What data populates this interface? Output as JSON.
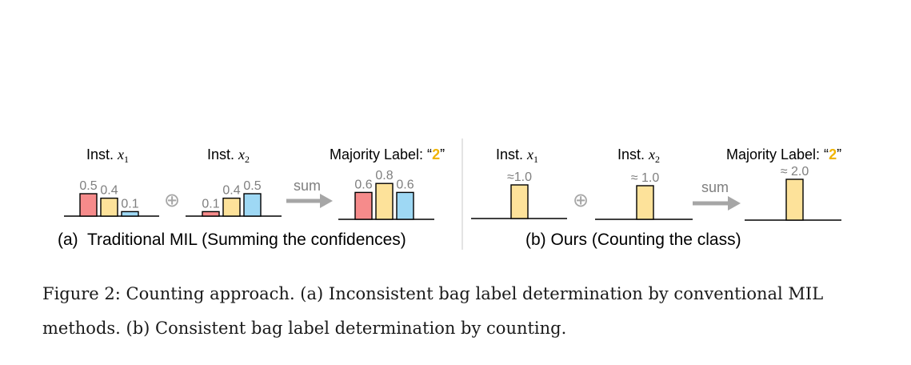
{
  "figure": {
    "panel_a": {
      "inst1": {
        "prefix": "Inst.",
        "var": "x",
        "sub": "1"
      },
      "inst2": {
        "prefix": "Inst.",
        "var": "x",
        "sub": "2"
      },
      "result": {
        "label": "Majority Label: “",
        "class": "2",
        "close": "”"
      },
      "operator": "⊕",
      "arrow_label": "sum",
      "caption": "(a)  Traditional MIL (Summing the confidences)"
    },
    "panel_b": {
      "inst1": {
        "prefix": "Inst.",
        "var": "x",
        "sub": "1"
      },
      "inst2": {
        "prefix": "Inst.",
        "var": "x",
        "sub": "2"
      },
      "result": {
        "label": "Majority Label: “",
        "class": "2",
        "close": "”"
      },
      "operator": "⊕",
      "arrow_label": "sum",
      "caption": "(b) Ours (Counting the class)"
    },
    "caption_text": "Figure 2: Counting approach. (a) Inconsistent bag label determination by conventional MIL methods. (b) Consistent bag label determination by counting."
  },
  "colors": {
    "class1": "#f68b8b",
    "class2": "#fde29a",
    "class3": "#9ed8f4",
    "accent": "#f0b400",
    "arrow": "#a6a6a6",
    "value_text": "#7f7f7f"
  },
  "chart_data": [
    {
      "type": "bar",
      "panel": "a",
      "group": "inst1",
      "values": [
        0.5,
        0.4,
        0.1
      ],
      "labels": [
        "0.5",
        "0.4",
        "0.1"
      ]
    },
    {
      "type": "bar",
      "panel": "a",
      "group": "inst2",
      "values": [
        0.1,
        0.4,
        0.5
      ],
      "labels": [
        "0.1",
        "0.4",
        "0.5"
      ]
    },
    {
      "type": "bar",
      "panel": "a",
      "group": "sum",
      "values": [
        0.6,
        0.8,
        0.6
      ],
      "labels": [
        "0.6",
        "0.8",
        "0.6"
      ]
    },
    {
      "type": "bar",
      "panel": "b",
      "group": "inst1",
      "values": [
        1.0
      ],
      "labels": [
        "≈1.0"
      ]
    },
    {
      "type": "bar",
      "panel": "b",
      "group": "inst2",
      "values": [
        1.0
      ],
      "labels": [
        "≈ 1.0"
      ]
    },
    {
      "type": "bar",
      "panel": "b",
      "group": "sum",
      "values": [
        2.0
      ],
      "labels": [
        "≈ 2.0"
      ]
    }
  ]
}
